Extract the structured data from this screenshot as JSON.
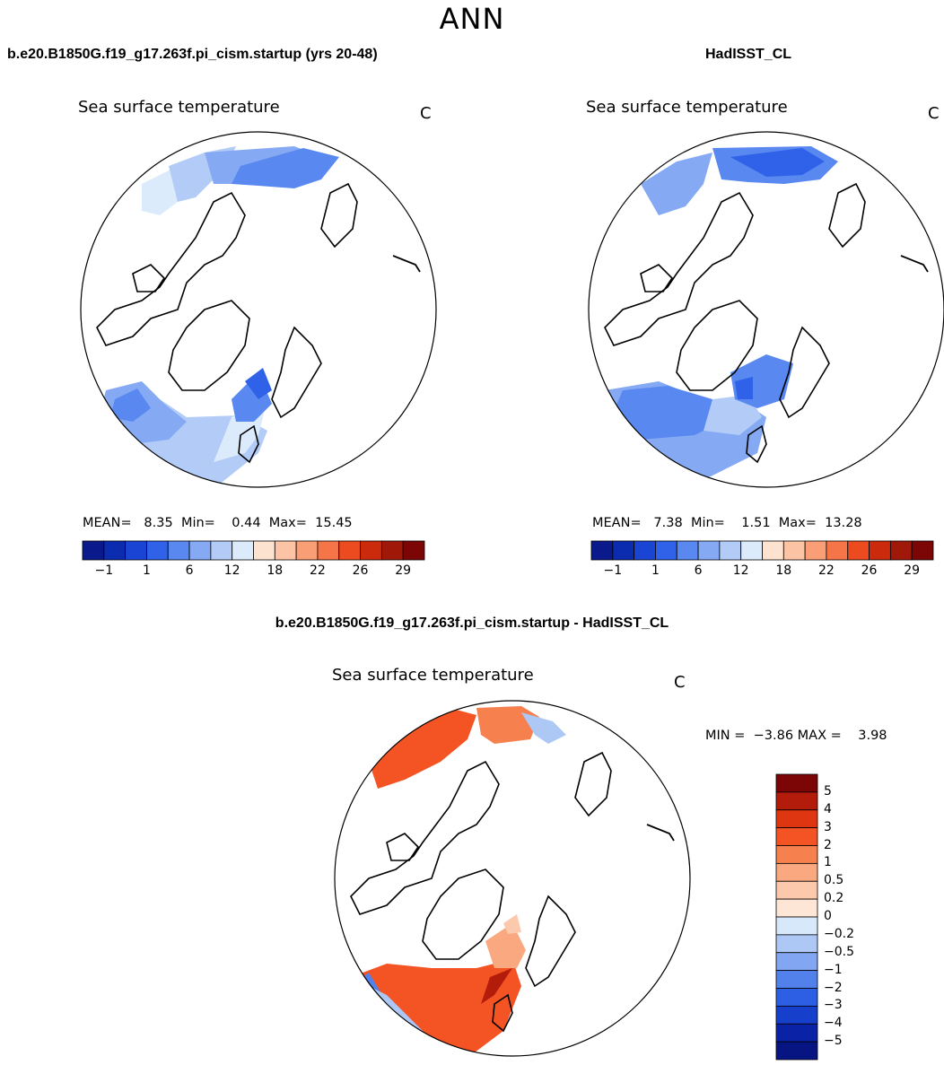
{
  "title": "ANN",
  "panels": [
    {
      "case": "b.e20.B1850G.f19_g17.263f.pi_cism.startup (yrs 20-48)",
      "variable": "Sea surface temperature",
      "units": "C",
      "stats": {
        "mean_label": "MEAN=",
        "mean": "8.35",
        "min_label": "Min=",
        "min": "0.44",
        "max_label": "Max=",
        "max": "15.45"
      }
    },
    {
      "case": "HadISST_CL",
      "variable": "Sea surface temperature",
      "units": "C",
      "stats": {
        "mean_label": "MEAN=",
        "mean": "7.38",
        "min_label": "Min=",
        "min": "1.51",
        "max_label": "Max=",
        "max": "13.28"
      }
    }
  ],
  "colorbar": {
    "ticks": [
      "−1",
      "1",
      "6",
      "12",
      "18",
      "22",
      "26",
      "29"
    ],
    "colors": [
      "#0a1a8c",
      "#0c2cb0",
      "#1a44d4",
      "#2f62e8",
      "#5888f0",
      "#85aaf3",
      "#b2ccf7",
      "#dcebfb",
      "#fde3cf",
      "#fcc4a4",
      "#fa9e75",
      "#f57448",
      "#ec4a1f",
      "#cc2a0c",
      "#a01808",
      "#7c0606"
    ]
  },
  "difference": {
    "case": "b.e20.B1850G.f19_g17.263f.pi_cism.startup - HadISST_CL",
    "variable": "Sea surface temperature",
    "units": "C",
    "minmax": {
      "min_label": "MIN =",
      "min": "−3.86",
      "max_label": "MAX =",
      "max": "3.98"
    },
    "ticks": [
      "5",
      "4",
      "3",
      "2",
      "1",
      "0.5",
      "0.2",
      "0",
      "−0.2",
      "−0.5",
      "−1",
      "−2",
      "−3",
      "−4",
      "−5"
    ],
    "colors": [
      "#7c0606",
      "#b31c0a",
      "#de3610",
      "#f45424",
      "#f7804f",
      "#faa880",
      "#fcc9ac",
      "#fde6d6",
      "#d7e8fb",
      "#aec8f6",
      "#82a6f1",
      "#5381ec",
      "#2d5fe4",
      "#163fcb",
      "#0a23a6",
      "#061582"
    ]
  }
}
